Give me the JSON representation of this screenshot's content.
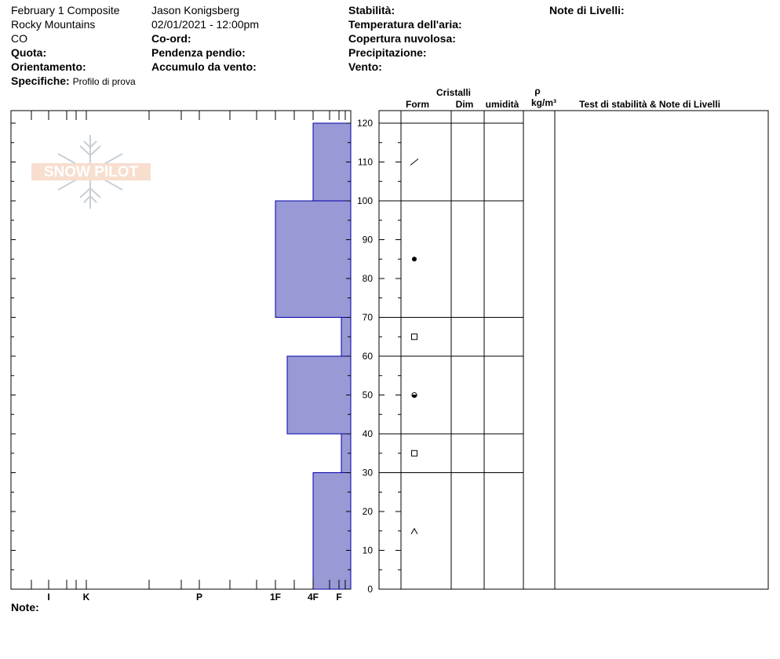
{
  "header": {
    "title": "February 1 Composite",
    "range": "Rocky Mountains",
    "state": "CO",
    "observer": "Jason Konigsberg",
    "datetime": "02/01/2021 - 12:00pm",
    "quota_label": "Quota:",
    "orientamento_label": "Orientamento:",
    "specifiche_label": "Specifiche:",
    "specifiche_value": "Profilo di prova",
    "coord_label": "Co-ord:",
    "pendenza_label": "Pendenza pendio:",
    "accumulo_label": "Accumulo da vento:",
    "stabilita_label": "Stabilità:",
    "temp_label": "Temperatura dell'aria:",
    "copertura_label": "Copertura nuvolosa:",
    "precip_label": "Precipitazione:",
    "vento_label": "Vento:",
    "note_livelli_label": "Note di Livelli:",
    "note_label": "Note:"
  },
  "table_headers": {
    "cristalli": "Cristalli",
    "form": "Form",
    "dim": "Dim",
    "umidita": "umidità",
    "rho": "ρ",
    "density_unit": "kg/m³",
    "stability": "Test di stabilità & Note di Livelli"
  },
  "logo_text": "SNOW PILOT",
  "colors": {
    "bar_fill": "#9999d6",
    "bar_stroke": "#0000aa"
  },
  "chart_data": {
    "type": "bar",
    "orientation": "horizontal",
    "title": "",
    "y_axis": {
      "min": 0,
      "max": 124,
      "ticks": [
        0,
        10,
        20,
        30,
        40,
        50,
        60,
        70,
        80,
        90,
        100,
        110,
        120
      ]
    },
    "hardness_scale": [
      "I",
      "K",
      "P",
      "1F",
      "4F",
      "F"
    ],
    "layers": [
      {
        "bottom": 0,
        "top": 30,
        "hardness": "4F"
      },
      {
        "bottom": 30,
        "top": 40,
        "hardness": "F+"
      },
      {
        "bottom": 40,
        "top": 60,
        "hardness": "1F-"
      },
      {
        "bottom": 60,
        "top": 70,
        "hardness": "F+"
      },
      {
        "bottom": 70,
        "top": 100,
        "hardness": "1F"
      },
      {
        "bottom": 100,
        "top": 120,
        "hardness": "4F"
      }
    ],
    "layer_boundaries": [
      30,
      40,
      60,
      70,
      100,
      120
    ],
    "crystal_symbols": [
      {
        "height": 110,
        "symbol": "/"
      },
      {
        "height": 85,
        "symbol": "●"
      },
      {
        "height": 65,
        "symbol": "□"
      },
      {
        "height": 50,
        "symbol": "◓"
      },
      {
        "height": 35,
        "symbol": "□"
      },
      {
        "height": 15,
        "symbol": "^"
      }
    ]
  }
}
